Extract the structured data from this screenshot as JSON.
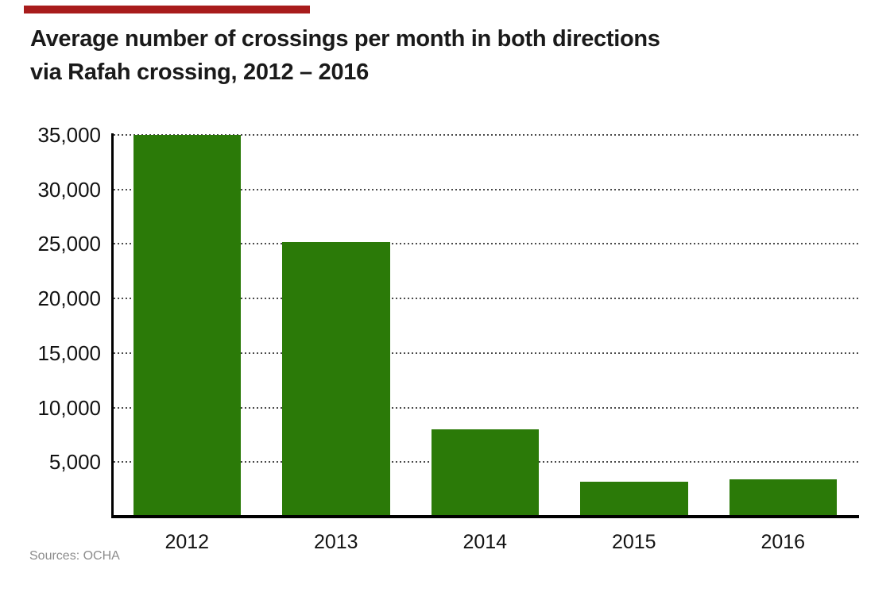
{
  "accent": {
    "color": "#a81c1c"
  },
  "header": {
    "title_line1": "Average number of crossings per month in both directions",
    "title_line2": "via Rafah crossing, 2012 – 2016"
  },
  "footer": {
    "source_label": "Sources: OCHA"
  },
  "chart_data": {
    "type": "bar",
    "title": "Average number of crossings per month in both directions via Rafah crossing, 2012 – 2016",
    "categories": [
      "2012",
      "2013",
      "2014",
      "2015",
      "2016"
    ],
    "values": [
      35000,
      25200,
      8000,
      3200,
      3450
    ],
    "xlabel": "",
    "ylabel": "",
    "ylim": [
      0,
      35000
    ],
    "yticks": [
      5000,
      10000,
      15000,
      20000,
      25000,
      30000,
      35000
    ],
    "ytick_format": "thousands-comma",
    "grid": "horizontal-dotted",
    "legend": "none",
    "bar_color": "#2b7a08",
    "source": "Sources: OCHA"
  }
}
